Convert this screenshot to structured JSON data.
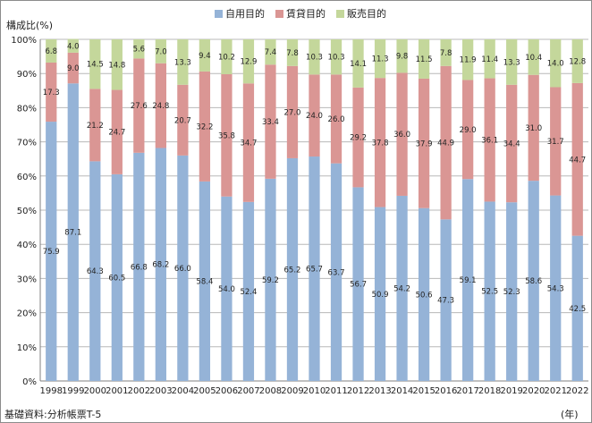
{
  "chart_data": {
    "type": "bar",
    "stacked": true,
    "ylabel": "構成比(%)",
    "xunit": "(年)",
    "source": "基礎資料:分析帳票T-5",
    "ylim": [
      0,
      100
    ],
    "yticks": [
      "0%",
      "10%",
      "20%",
      "30%",
      "40%",
      "50%",
      "60%",
      "70%",
      "80%",
      "90%",
      "100%"
    ],
    "legend_position": "top",
    "categories": [
      "1998",
      "1999",
      "2000",
      "2001",
      "2002",
      "2003",
      "2004",
      "2005",
      "2006",
      "2007",
      "2008",
      "2009",
      "2010",
      "2011",
      "2012",
      "2013",
      "2014",
      "2015",
      "2016",
      "2017",
      "2018",
      "2019",
      "2020",
      "2021",
      "2022"
    ],
    "series": [
      {
        "name": "自用目的",
        "color": "#95b3d7",
        "values": [
          75.9,
          87.1,
          64.3,
          60.5,
          66.8,
          68.2,
          66.0,
          58.4,
          54.0,
          52.4,
          59.2,
          65.2,
          65.7,
          63.7,
          56.7,
          50.9,
          54.2,
          50.6,
          47.3,
          59.1,
          52.5,
          52.3,
          58.6,
          54.3,
          42.5
        ]
      },
      {
        "name": "賃貸目的",
        "color": "#da9694",
        "values": [
          17.3,
          9.0,
          21.2,
          24.7,
          27.6,
          24.8,
          20.7,
          32.2,
          35.8,
          34.7,
          33.4,
          27.0,
          24.0,
          26.0,
          29.2,
          37.8,
          36.0,
          37.9,
          44.9,
          29.0,
          36.1,
          34.4,
          31.0,
          31.7,
          44.7
        ]
      },
      {
        "name": "販売目的",
        "color": "#c4d79b",
        "values": [
          6.8,
          4.0,
          14.5,
          14.8,
          5.6,
          7.0,
          13.3,
          9.4,
          10.2,
          12.9,
          7.4,
          7.8,
          10.3,
          10.3,
          14.1,
          11.3,
          9.8,
          11.5,
          7.8,
          11.9,
          11.4,
          13.3,
          10.4,
          14.0,
          12.8
        ]
      }
    ]
  }
}
